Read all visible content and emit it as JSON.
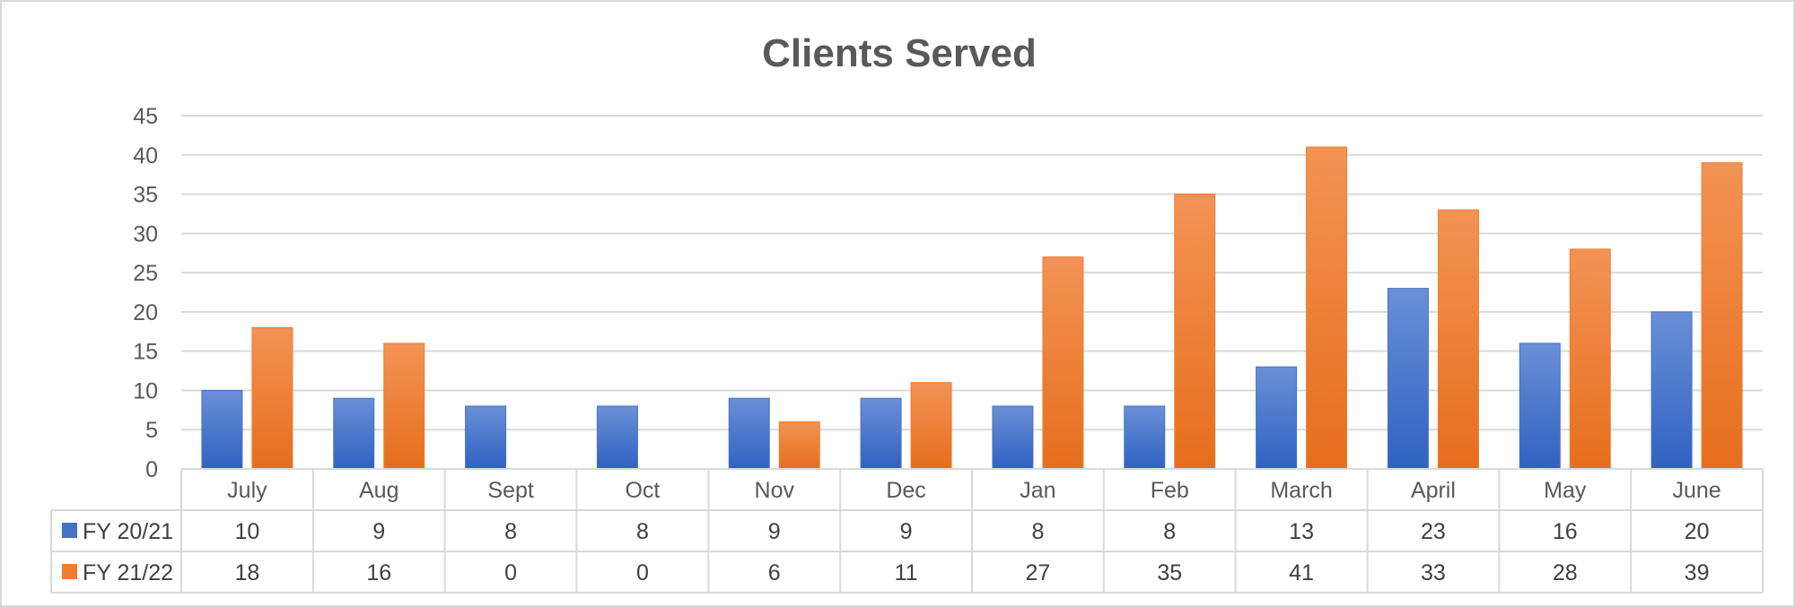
{
  "chart_data": {
    "type": "bar",
    "title": "Clients Served",
    "categories": [
      "July",
      "Aug",
      "Sept",
      "Oct",
      "Nov",
      "Dec",
      "Jan",
      "Feb",
      "March",
      "April",
      "May",
      "June"
    ],
    "series": [
      {
        "name": "FY 20/21",
        "color": "#4472C4",
        "values": [
          10,
          9,
          8,
          8,
          9,
          9,
          8,
          8,
          13,
          23,
          16,
          20
        ]
      },
      {
        "name": "FY 21/22",
        "color": "#ED7D31",
        "values": [
          18,
          16,
          0,
          0,
          6,
          11,
          27,
          35,
          41,
          33,
          28,
          39
        ]
      }
    ],
    "ylim": [
      0,
      45
    ],
    "yticks": [
      0,
      5,
      10,
      15,
      20,
      25,
      30,
      35,
      40,
      45
    ],
    "grid": true,
    "legend": "data-table-rows"
  }
}
